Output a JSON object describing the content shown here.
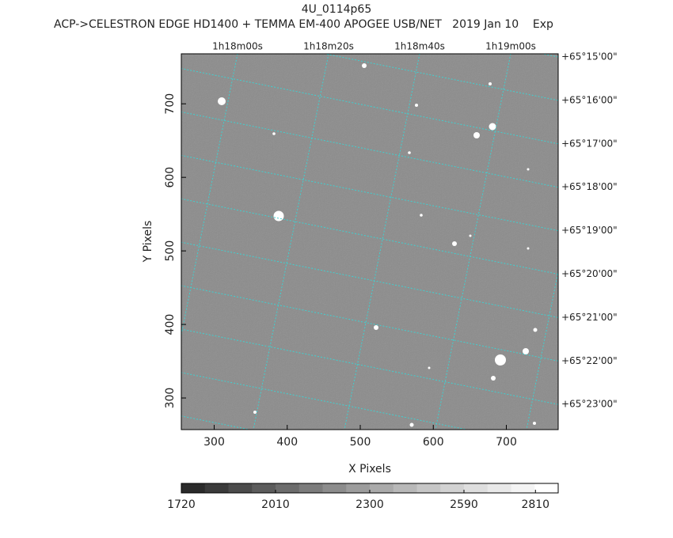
{
  "chart_data": {
    "type": "image",
    "title": "4U_0114p65",
    "subtitle": "ACP->CELESTRON EDGE HD1400 + TEMMA EM-400 APOGEE USB/NET   2019 Jan 10    Exp",
    "x_label": "X Pixels",
    "y_label": "Y Pixels",
    "xlim": [
      255,
      771
    ],
    "ylim": [
      257,
      768
    ],
    "xticks": [
      300,
      400,
      500,
      600,
      700
    ],
    "yticks": [
      300,
      400,
      500,
      600,
      700
    ],
    "ra_labels": [
      "1h18m00s",
      "1h18m20s",
      "1h18m40s",
      "1h19m00s"
    ],
    "dec_labels": [
      "+65°15'00\"",
      "+65°16'00\"",
      "+65°17'00\"",
      "+65°18'00\"",
      "+65°19'00\"",
      "+65°20'00\"",
      "+65°21'00\"",
      "+65°22'00\"",
      "+65°23'00\""
    ],
    "grid": true,
    "grid_color": "#3fd0d0",
    "colorbar_lim": [
      1720,
      2880
    ],
    "colorbar_ticks": [
      1720,
      2010,
      2300,
      2590,
      2810
    ],
    "colorbar_colors": [
      "#2a2a2a",
      "#3a3a3a",
      "#4b4b4b",
      "#5c5c5c",
      "#6c6c6c",
      "#7c7c7c",
      "#8c8c8c",
      "#9c9c9c",
      "#aaaaaa",
      "#b8b8b8",
      "#c6c6c6",
      "#d2d2d2",
      "#dedede",
      "#e9e9e9",
      "#f4f4f4",
      "#ffffff"
    ]
  }
}
